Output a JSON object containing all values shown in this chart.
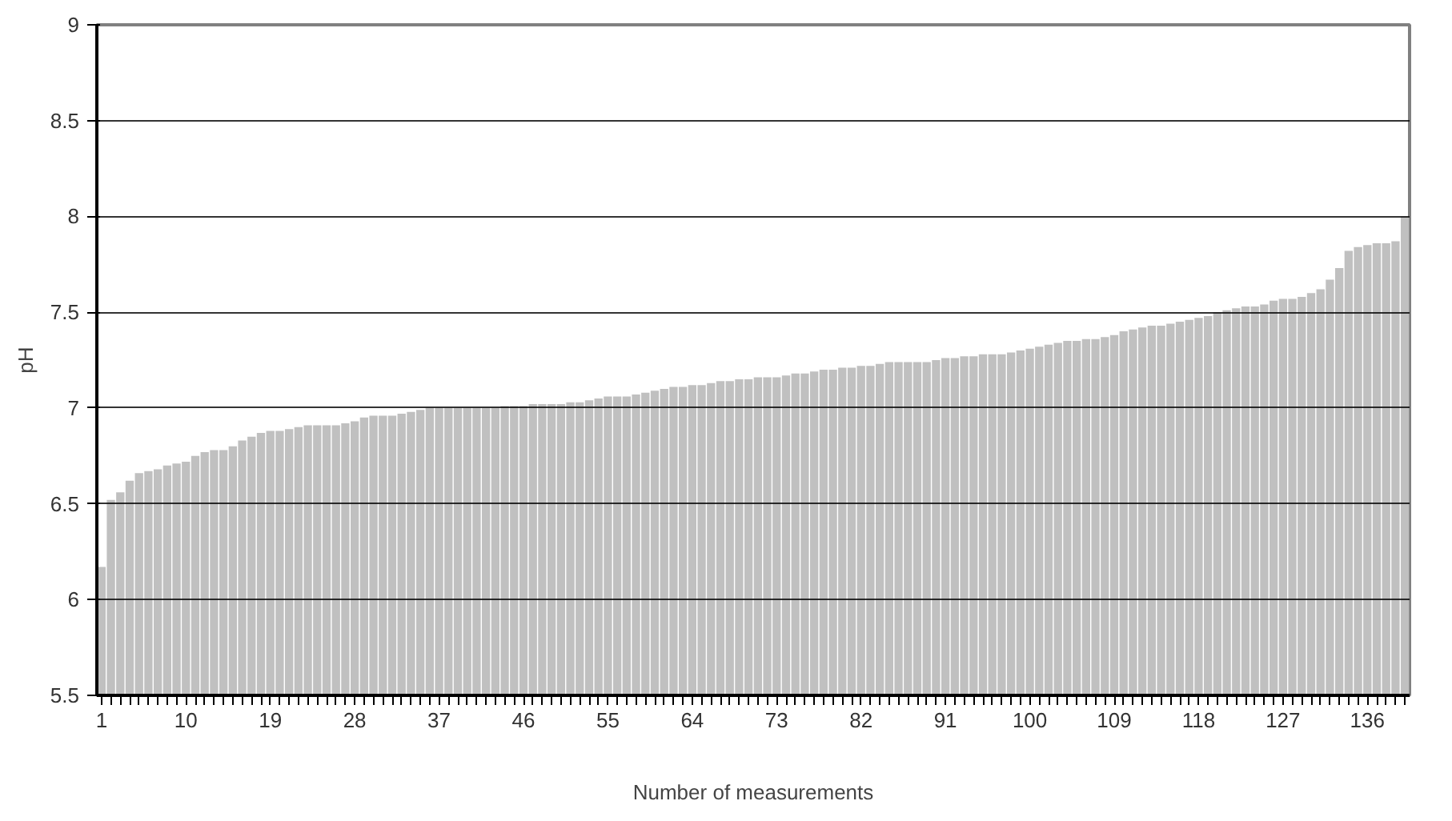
{
  "chart_data": {
    "type": "bar",
    "xlabel": "Number of measurements",
    "ylabel": "pH",
    "categories": [
      "1",
      null,
      null,
      null,
      null,
      null,
      null,
      null,
      null,
      "10",
      null,
      null,
      null,
      null,
      null,
      null,
      null,
      null,
      "19",
      null,
      null,
      null,
      null,
      null,
      null,
      null,
      null,
      "28",
      null,
      null,
      null,
      null,
      null,
      null,
      null,
      null,
      "37",
      null,
      null,
      null,
      null,
      null,
      null,
      null,
      null,
      "46",
      null,
      null,
      null,
      null,
      null,
      null,
      null,
      null,
      "55",
      null,
      null,
      null,
      null,
      null,
      null,
      null,
      null,
      "64",
      null,
      null,
      null,
      null,
      null,
      null,
      null,
      null,
      "73",
      null,
      null,
      null,
      null,
      null,
      null,
      null,
      null,
      "82",
      null,
      null,
      null,
      null,
      null,
      null,
      null,
      null,
      "91",
      null,
      null,
      null,
      null,
      null,
      null,
      null,
      null,
      "100",
      null,
      null,
      null,
      null,
      null,
      null,
      null,
      null,
      "109",
      null,
      null,
      null,
      null,
      null,
      null,
      null,
      null,
      "118",
      null,
      null,
      null,
      null,
      null,
      null,
      null,
      null,
      "127",
      null,
      null,
      null,
      null,
      null,
      null,
      null,
      null,
      "136",
      null,
      null,
      null,
      null
    ],
    "values": [
      6.17,
      6.52,
      6.56,
      6.62,
      6.66,
      6.67,
      6.68,
      6.7,
      6.71,
      6.72,
      6.75,
      6.77,
      6.78,
      6.78,
      6.8,
      6.83,
      6.85,
      6.87,
      6.88,
      6.88,
      6.89,
      6.9,
      6.91,
      6.91,
      6.91,
      6.91,
      6.92,
      6.93,
      6.95,
      6.96,
      6.96,
      6.96,
      6.97,
      6.98,
      6.99,
      7.0,
      7.0,
      7.0,
      7.0,
      7.0,
      7.0,
      7.0,
      7.0,
      7.01,
      7.01,
      7.01,
      7.02,
      7.02,
      7.02,
      7.02,
      7.03,
      7.03,
      7.04,
      7.05,
      7.06,
      7.06,
      7.06,
      7.07,
      7.08,
      7.09,
      7.1,
      7.11,
      7.11,
      7.12,
      7.12,
      7.13,
      7.14,
      7.14,
      7.15,
      7.15,
      7.16,
      7.16,
      7.16,
      7.17,
      7.18,
      7.18,
      7.19,
      7.2,
      7.2,
      7.21,
      7.21,
      7.22,
      7.22,
      7.23,
      7.24,
      7.24,
      7.24,
      7.24,
      7.24,
      7.25,
      7.26,
      7.26,
      7.27,
      7.27,
      7.28,
      7.28,
      7.28,
      7.29,
      7.3,
      7.31,
      7.32,
      7.33,
      7.34,
      7.35,
      7.35,
      7.36,
      7.36,
      7.37,
      7.38,
      7.4,
      7.41,
      7.42,
      7.43,
      7.43,
      7.44,
      7.45,
      7.46,
      7.47,
      7.48,
      7.5,
      7.51,
      7.52,
      7.53,
      7.53,
      7.54,
      7.56,
      7.57,
      7.57,
      7.58,
      7.6,
      7.62,
      7.67,
      7.73,
      7.82,
      7.84,
      7.85,
      7.86,
      7.86,
      7.87,
      8.0
    ],
    "color": "#c0c0c0",
    "ylim": [
      5.5,
      9
    ],
    "yticks": [
      5.5,
      6,
      6.5,
      7,
      7.5,
      8,
      8.5,
      9
    ],
    "grid": "y"
  }
}
